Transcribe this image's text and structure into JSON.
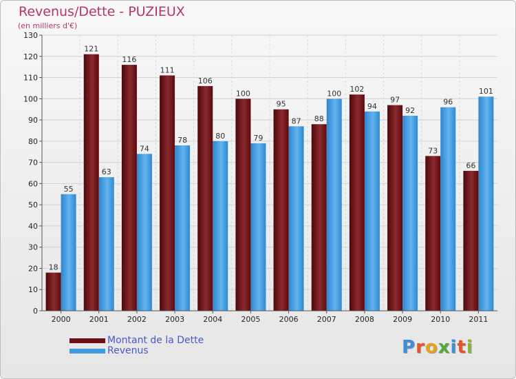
{
  "title": "Revenus/Dette - PUZIEUX",
  "subtitle": "(en milliers d'€)",
  "colors": {
    "dette": "#6b0f14",
    "revenus": "#3f9be0",
    "title": "#b8336a",
    "legend_text": "#4a57c8"
  },
  "legend": {
    "dette_label": "Montant de la Dette",
    "revenus_label": "Revenus"
  },
  "logo": {
    "text": "Proxiti"
  },
  "chart_data": {
    "type": "bar",
    "title": "Revenus/Dette - PUZIEUX",
    "subtitle": "(en milliers d'€)",
    "categories": [
      "2000",
      "2001",
      "2002",
      "2003",
      "2004",
      "2005",
      "2006",
      "2007",
      "2008",
      "2009",
      "2010",
      "2011"
    ],
    "series": [
      {
        "name": "Montant de la Dette",
        "values": [
          18,
          121,
          116,
          111,
          106,
          100,
          95,
          88,
          102,
          97,
          73,
          66
        ]
      },
      {
        "name": "Revenus",
        "values": [
          55,
          63,
          74,
          78,
          80,
          79,
          87,
          100,
          94,
          92,
          96,
          101
        ]
      }
    ],
    "ylim": [
      0,
      130
    ],
    "yticks": [
      0,
      10,
      20,
      30,
      40,
      50,
      60,
      70,
      80,
      90,
      100,
      110,
      120,
      130
    ],
    "grid": true,
    "legend_position": "bottom-left"
  }
}
